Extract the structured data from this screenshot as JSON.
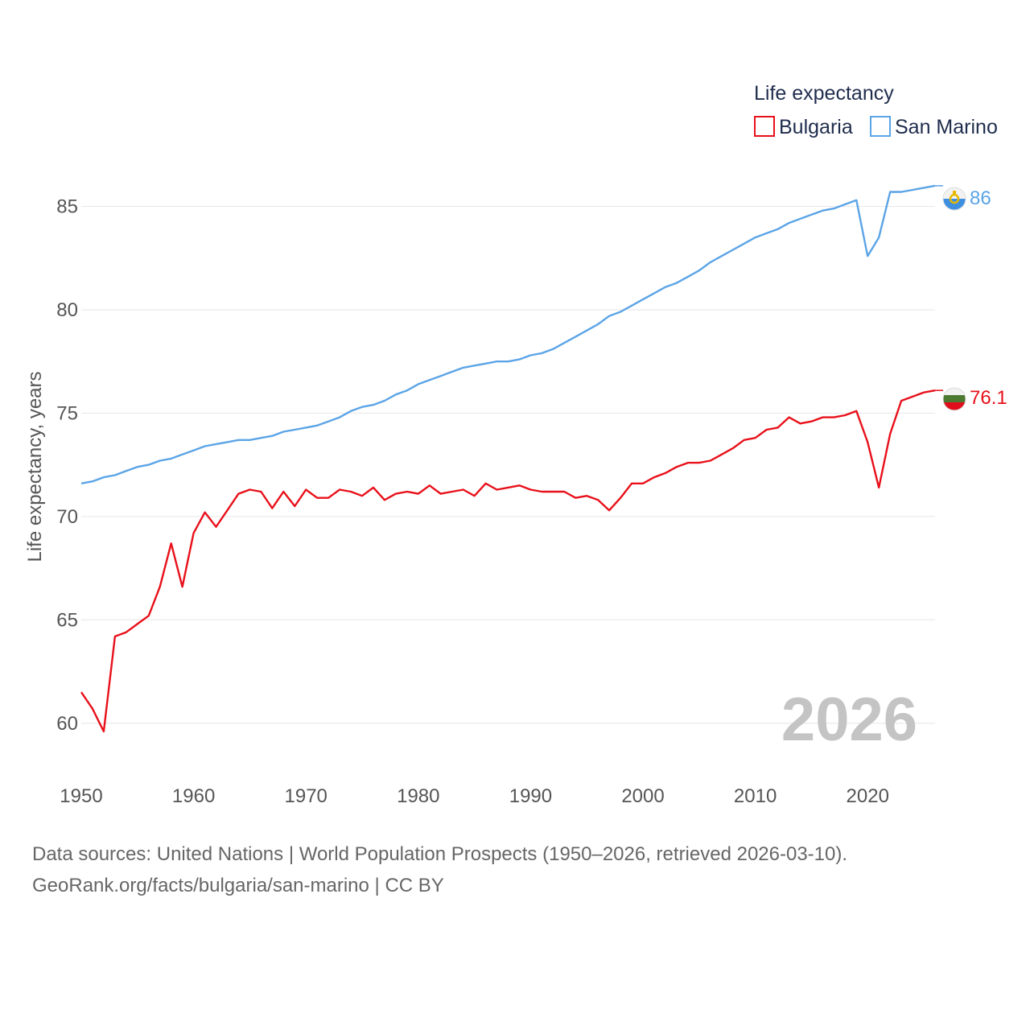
{
  "chart_data": {
    "type": "line",
    "title": "",
    "xlabel": "",
    "ylabel": "Life expectancy, years",
    "xlim": [
      1950,
      2026
    ],
    "ylim": [
      58.2,
      87.2
    ],
    "y_ticks": [
      60,
      65,
      70,
      75,
      80,
      85
    ],
    "x_ticks": [
      1950,
      1960,
      1970,
      1980,
      1990,
      2000,
      2010,
      2020
    ],
    "grid": true,
    "legend": {
      "title": "Life expectancy",
      "placement": "top-right"
    },
    "year_label": "2026",
    "x": [
      1950,
      1951,
      1952,
      1953,
      1954,
      1955,
      1956,
      1957,
      1958,
      1959,
      1960,
      1961,
      1962,
      1963,
      1964,
      1965,
      1966,
      1967,
      1968,
      1969,
      1970,
      1971,
      1972,
      1973,
      1974,
      1975,
      1976,
      1977,
      1978,
      1979,
      1980,
      1981,
      1982,
      1983,
      1984,
      1985,
      1986,
      1987,
      1988,
      1989,
      1990,
      1991,
      1992,
      1993,
      1994,
      1995,
      1996,
      1997,
      1998,
      1999,
      2000,
      2001,
      2002,
      2003,
      2004,
      2005,
      2006,
      2007,
      2008,
      2009,
      2010,
      2011,
      2012,
      2013,
      2014,
      2015,
      2016,
      2017,
      2018,
      2019,
      2020,
      2021,
      2022,
      2023,
      2024,
      2025,
      2026
    ],
    "series": [
      {
        "name": "Bulgaria",
        "color": "#e8101a",
        "end_label": "76.1",
        "values": [
          61.5,
          60.7,
          59.6,
          64.2,
          64.4,
          64.8,
          65.2,
          66.6,
          68.7,
          66.6,
          69.2,
          70.2,
          69.5,
          70.3,
          71.1,
          71.3,
          71.2,
          70.4,
          71.2,
          70.5,
          71.3,
          70.9,
          70.9,
          71.3,
          71.2,
          71.0,
          71.4,
          70.8,
          71.1,
          71.2,
          71.1,
          71.5,
          71.1,
          71.2,
          71.3,
          71.0,
          71.6,
          71.3,
          71.4,
          71.5,
          71.3,
          71.2,
          71.2,
          71.2,
          70.9,
          71.0,
          70.8,
          70.3,
          70.9,
          71.6,
          71.6,
          71.9,
          72.1,
          72.4,
          72.6,
          72.6,
          72.7,
          73.0,
          73.3,
          73.7,
          73.8,
          74.2,
          74.3,
          74.8,
          74.5,
          74.6,
          74.8,
          74.8,
          74.9,
          75.1,
          73.6,
          71.4,
          74.0,
          75.6,
          75.8,
          76.0,
          76.1
        ]
      },
      {
        "name": "San Marino",
        "color": "#5ba4e6",
        "end_label": "86",
        "values": [
          71.6,
          71.7,
          71.9,
          72.0,
          72.2,
          72.4,
          72.5,
          72.7,
          72.8,
          73.0,
          73.2,
          73.4,
          73.5,
          73.6,
          73.7,
          73.7,
          73.8,
          73.9,
          74.1,
          74.2,
          74.3,
          74.4,
          74.6,
          74.8,
          75.1,
          75.3,
          75.4,
          75.6,
          75.9,
          76.1,
          76.4,
          76.6,
          76.8,
          77.0,
          77.2,
          77.3,
          77.4,
          77.5,
          77.5,
          77.6,
          77.8,
          77.9,
          78.1,
          78.4,
          78.7,
          79.0,
          79.3,
          79.7,
          79.9,
          80.2,
          80.5,
          80.8,
          81.1,
          81.3,
          81.6,
          81.9,
          82.3,
          82.6,
          82.9,
          83.2,
          83.5,
          83.7,
          83.9,
          84.2,
          84.4,
          84.6,
          84.8,
          84.9,
          85.1,
          85.3,
          82.6,
          83.5,
          85.7,
          85.7,
          85.8,
          85.9,
          86.0
        ]
      }
    ]
  },
  "source": {
    "line1": "Data sources: United Nations | World Population Prospects (1950–2026, retrieved 2026-03-10).",
    "line2": "GeoRank.org/facts/bulgaria/san-marino | CC BY"
  }
}
